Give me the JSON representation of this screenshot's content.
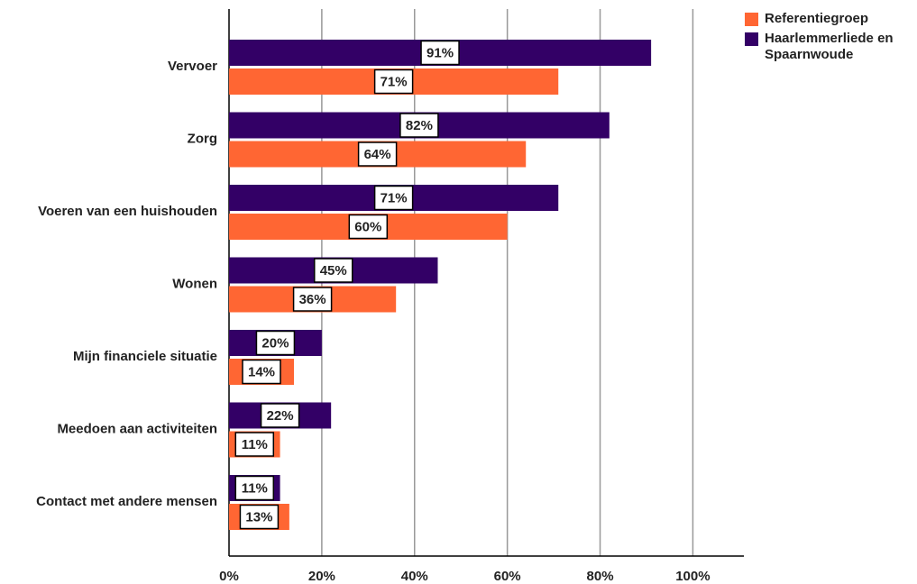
{
  "chart_data": {
    "type": "bar",
    "orientation": "horizontal",
    "categories": [
      "Vervoer",
      "Zorg",
      "Voeren van een huishouden",
      "Wonen",
      "Mijn financiele situatie",
      "Meedoen aan activiteiten",
      "Contact met andere mensen"
    ],
    "series": [
      {
        "name": "Referentiegroep",
        "color": "#ff6633",
        "values": [
          71,
          64,
          60,
          36,
          14,
          11,
          13
        ],
        "value_labels": [
          "71%",
          "64%",
          "60%",
          "36%",
          "14%",
          "11%",
          "13%"
        ]
      },
      {
        "name": "Haarlemmerliede en Spaarnwoude",
        "color": "#330066",
        "values": [
          91,
          82,
          71,
          45,
          20,
          22,
          11
        ],
        "value_labels": [
          "91%",
          "82%",
          "71%",
          "45%",
          "20%",
          "22%",
          "11%"
        ]
      }
    ],
    "xlim": [
      0,
      111
    ],
    "xticks": [
      {
        "value": 0,
        "label": "0%"
      },
      {
        "value": 20,
        "label": "20%"
      },
      {
        "value": 40,
        "label": "40%"
      },
      {
        "value": 60,
        "label": "60%"
      },
      {
        "value": 80,
        "label": "80%"
      },
      {
        "value": 100,
        "label": "100%"
      }
    ],
    "grid": true
  }
}
